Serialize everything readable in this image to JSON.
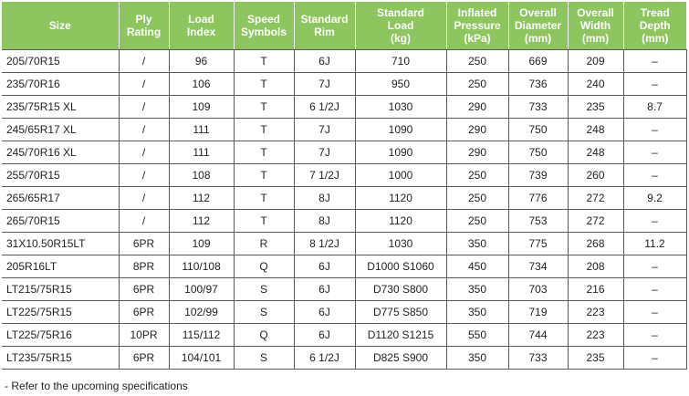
{
  "headers": [
    [
      "Size"
    ],
    [
      "Ply",
      "Rating"
    ],
    [
      "Load",
      "Index"
    ],
    [
      "Speed",
      "Symbols"
    ],
    [
      "Standard",
      "Rim"
    ],
    [
      "Standard",
      "Load",
      "(kg)"
    ],
    [
      "Inflated",
      "Pressure",
      "(kPa)"
    ],
    [
      "Overall",
      "Diameter",
      "(mm)"
    ],
    [
      "Overall",
      "Width",
      "(mm)"
    ],
    [
      "Tread",
      "Depth",
      "(mm)"
    ]
  ],
  "rows": [
    [
      "205/70R15",
      "/",
      "96",
      "T",
      "6J",
      "710",
      "250",
      "669",
      "209",
      "–"
    ],
    [
      "235/70R16",
      "/",
      "106",
      "T",
      "7J",
      "950",
      "250",
      "736",
      "240",
      "–"
    ],
    [
      "235/75R15 XL",
      "/",
      "109",
      "T",
      "6 1/2J",
      "1030",
      "290",
      "733",
      "235",
      "8.7"
    ],
    [
      "245/65R17 XL",
      "/",
      "111",
      "T",
      "7J",
      "1090",
      "290",
      "750",
      "248",
      "–"
    ],
    [
      "245/70R16 XL",
      "/",
      "111",
      "T",
      "7J",
      "1090",
      "290",
      "750",
      "248",
      "–"
    ],
    [
      "255/70R15",
      "/",
      "108",
      "T",
      "7 1/2J",
      "1000",
      "250",
      "739",
      "260",
      "–"
    ],
    [
      "265/65R17",
      "/",
      "112",
      "T",
      "8J",
      "1120",
      "250",
      "776",
      "272",
      "9.2"
    ],
    [
      "265/70R15",
      "/",
      "112",
      "T",
      "8J",
      "1120",
      "250",
      "753",
      "272",
      "–"
    ],
    [
      "31X10.50R15LT",
      "6PR",
      "109",
      "R",
      "8 1/2J",
      "1030",
      "350",
      "775",
      "268",
      "11.2"
    ],
    [
      "205R16LT",
      "8PR",
      "110/108",
      "Q",
      "6J",
      "D1000 S1060",
      "450",
      "734",
      "208",
      "–"
    ],
    [
      "LT215/75R15",
      "6PR",
      "100/97",
      "S",
      "6J",
      "D730 S800",
      "350",
      "703",
      "216",
      "–"
    ],
    [
      "LT225/75R15",
      "6PR",
      "102/99",
      "S",
      "6J",
      "D775 S850",
      "350",
      "719",
      "223",
      "–"
    ],
    [
      "LT225/75R16",
      "10PR",
      "115/112",
      "Q",
      "6J",
      "D1120 S1215",
      "550",
      "744",
      "223",
      "–"
    ],
    [
      "LT235/75R15",
      "6PR",
      "104/101",
      "S",
      "6 1/2J",
      "D825 S900",
      "350",
      "733",
      "235",
      "–"
    ]
  ],
  "footnote": "- Refer to the upcoming specifications",
  "colors": {
    "header_background": "#8dc55e",
    "header_text": "#ffffff",
    "grid_lines": "#5a5a5a"
  }
}
